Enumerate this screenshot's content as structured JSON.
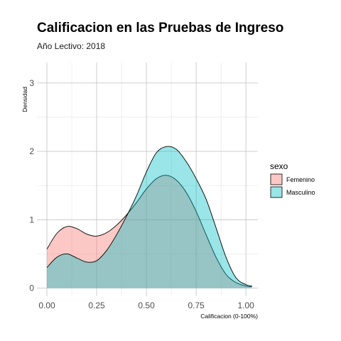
{
  "chart_data": {
    "type": "area",
    "title": "Calificacion en las Pruebas de Ingreso",
    "subtitle": "Año Lectivo: 2018",
    "xlabel": "Calificacion (0-100%)",
    "ylabel": "Densidad",
    "xlim": [
      -0.05,
      1.06
    ],
    "ylim": [
      -0.12,
      3.3
    ],
    "xticks": [
      0,
      0.25,
      0.5,
      0.75,
      1.0
    ],
    "xtick_labels": [
      "0.00",
      "0.25",
      "0.50",
      "0.75",
      "1.00"
    ],
    "yticks": [
      0,
      1,
      2,
      3
    ],
    "ytick_labels": [
      "0",
      "1",
      "2",
      "3"
    ],
    "grid": true,
    "legend": {
      "title": "sexo",
      "position": "right"
    },
    "series": [
      {
        "name": "Femenino",
        "color": "#F8766D",
        "x": [
          0.0,
          0.05,
          0.1,
          0.15,
          0.2,
          0.25,
          0.3,
          0.35,
          0.4,
          0.45,
          0.5,
          0.55,
          0.6,
          0.65,
          0.7,
          0.75,
          0.8,
          0.85,
          0.9,
          0.95,
          1.0,
          1.03
        ],
        "values": [
          0.57,
          0.8,
          0.9,
          0.87,
          0.79,
          0.76,
          0.81,
          0.92,
          1.07,
          1.25,
          1.45,
          1.6,
          1.65,
          1.58,
          1.4,
          1.12,
          0.78,
          0.45,
          0.2,
          0.08,
          0.03,
          0.02
        ]
      },
      {
        "name": "Masculino",
        "color": "#00BFC4",
        "x": [
          0.0,
          0.05,
          0.1,
          0.15,
          0.2,
          0.25,
          0.3,
          0.35,
          0.4,
          0.45,
          0.5,
          0.55,
          0.6,
          0.65,
          0.7,
          0.75,
          0.8,
          0.85,
          0.9,
          0.95,
          1.0,
          1.03
        ],
        "values": [
          0.3,
          0.45,
          0.5,
          0.44,
          0.38,
          0.4,
          0.55,
          0.78,
          1.05,
          1.35,
          1.7,
          1.98,
          2.07,
          2.03,
          1.85,
          1.6,
          1.3,
          0.88,
          0.45,
          0.15,
          0.05,
          0.03
        ]
      }
    ]
  }
}
